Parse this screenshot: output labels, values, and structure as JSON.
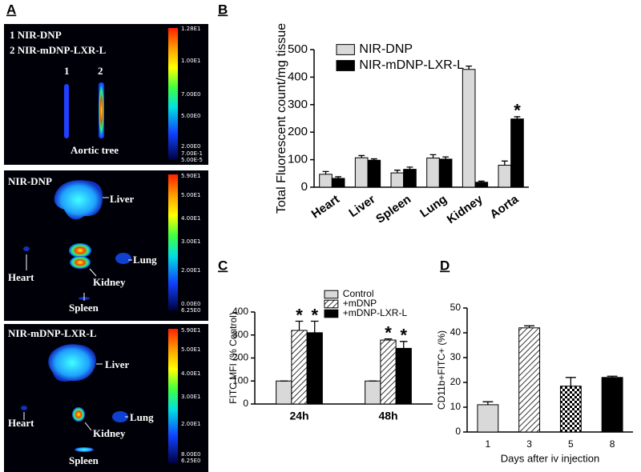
{
  "panel_a": {
    "panel_label": "A",
    "images": [
      {
        "labels": [
          "1 NIR-DNP",
          "2 NIR-mDNP-LXR-L",
          "1",
          "2",
          "Aortic tree"
        ],
        "colorbar": [
          "1.28E1",
          "1.00E1",
          "7.00E0",
          "5.00E0",
          "2.00E0",
          "7.00E-1",
          "5.00E-5"
        ]
      },
      {
        "labels": [
          "NIR-DNP",
          "Liver",
          "Heart",
          "Kidney",
          "Lung",
          "Spleen"
        ],
        "colorbar": [
          "5.90E1",
          "5.00E1",
          "4.00E1",
          "3.00E1",
          "2.00E1",
          "0.00E0",
          "6.25E0"
        ]
      },
      {
        "labels": [
          "NIR-mDNP-LXR-L",
          "Liver",
          "Lung",
          "Heart",
          "Kidney",
          "Spleen"
        ],
        "colorbar": [
          "5.90E1",
          "5.00E1",
          "4.00E1",
          "3.00E1",
          "2.00E1",
          "8.00E0",
          "6.25E0"
        ]
      }
    ]
  },
  "chart_data": [
    {
      "type": "bar",
      "panel_label": "B",
      "ylabel": "Total  Fluorescent count/mg tissue",
      "categories": [
        "Heart",
        "Liver",
        "Spleen",
        "Lung",
        "Kidney",
        "Aorta"
      ],
      "series": [
        {
          "name": "NIR-DNP",
          "color": "#d9d9d9",
          "values": [
            47,
            107,
            52,
            106,
            428,
            80
          ],
          "errors": [
            10,
            8,
            10,
            12,
            12,
            15
          ],
          "markers": [
            null,
            null,
            null,
            null,
            null,
            null
          ]
        },
        {
          "name": "NIR-mDNP-LXR-L",
          "color": "#000000",
          "values": [
            32,
            98,
            65,
            102,
            18,
            248
          ],
          "errors": [
            6,
            5,
            8,
            8,
            4,
            8
          ],
          "markers": [
            null,
            null,
            null,
            null,
            null,
            "*"
          ]
        }
      ],
      "ylim": [
        0,
        500
      ],
      "yticks": [
        0,
        100,
        200,
        300,
        400,
        500
      ],
      "legend": "upper-left"
    },
    {
      "type": "bar",
      "panel_label": "C",
      "ylabel": "FITC MFI (% Control)",
      "categories": [
        "24h",
        "48h"
      ],
      "series": [
        {
          "name": "Control",
          "color": "#d9d9d9",
          "values": [
            100,
            100
          ],
          "errors": [
            0,
            0
          ],
          "markers": [
            null,
            null
          ]
        },
        {
          "name": "+mDNP",
          "color": "#ffffff",
          "pattern": "hatch",
          "values": [
            320,
            278
          ],
          "errors": [
            40,
            5
          ],
          "markers": [
            "*",
            "*"
          ]
        },
        {
          "name": "+mDNP-LXR-L",
          "color": "#000000",
          "values": [
            310,
            242
          ],
          "errors": [
            50,
            30
          ],
          "markers": [
            "*",
            "*"
          ]
        }
      ],
      "ylim": [
        0,
        400
      ],
      "yticks": [
        0,
        100,
        200,
        300,
        400
      ],
      "legend": "top"
    },
    {
      "type": "bar",
      "panel_label": "D",
      "ylabel": "CD11b+FITC+ (%)",
      "xlabel": "Days after iv injection",
      "categories": [
        "1",
        "3",
        "5",
        "8"
      ],
      "values": [
        11,
        42,
        18.5,
        22
      ],
      "errors": [
        1.2,
        0.8,
        3.5,
        0.5
      ],
      "colors": [
        "#d9d9d9",
        "#ffffff",
        "#ffffff",
        "#000000"
      ],
      "patterns": [
        null,
        "hatch",
        "checker",
        null
      ],
      "ylim": [
        0,
        50
      ],
      "yticks": [
        0,
        10,
        20,
        30,
        40,
        50
      ]
    }
  ]
}
